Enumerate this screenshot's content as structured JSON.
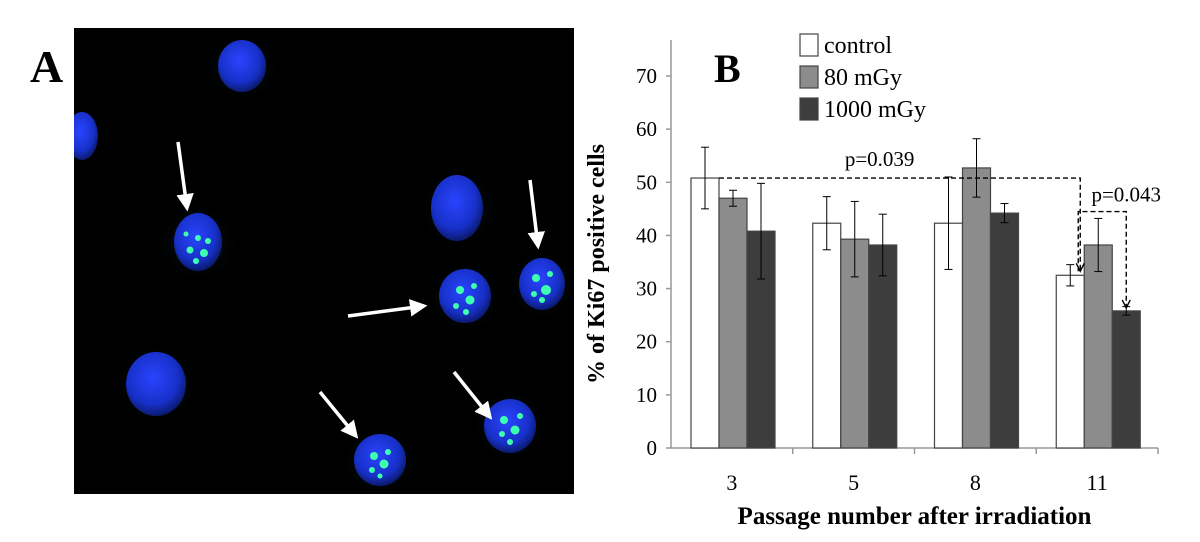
{
  "panel_a": {
    "label": "A"
  },
  "chart_data": {
    "type": "bar",
    "panel_label": "B",
    "xlabel": "Passage number after irradiation",
    "ylabel": "% of Ki67 positive cells",
    "categories": [
      "3",
      "5",
      "8",
      "11"
    ],
    "ylim": [
      0,
      70
    ],
    "yticks": [
      0,
      10,
      20,
      30,
      40,
      50,
      60,
      70
    ],
    "grid": false,
    "legend_position": "top",
    "series": [
      {
        "name": "control",
        "color": "#ffffff",
        "values": [
          50.8,
          42.3,
          42.3,
          32.5
        ],
        "errors": [
          5.8,
          5.0,
          8.7,
          2.0
        ]
      },
      {
        "name": "80 mGy",
        "color": "#8c8c8c",
        "values": [
          47.0,
          39.3,
          52.7,
          38.2
        ],
        "errors": [
          1.5,
          7.1,
          5.5,
          5.0
        ]
      },
      {
        "name": "1000 mGy",
        "color": "#3d3d3d",
        "values": [
          40.8,
          38.2,
          44.2,
          25.8
        ],
        "errors": [
          9.0,
          5.8,
          1.8,
          0.8
        ]
      }
    ],
    "annotations": [
      {
        "text": "p=0.039",
        "from": {
          "category": "3",
          "series": "control"
        },
        "to": {
          "category": "11",
          "series": "control"
        }
      },
      {
        "text": "p=0.043",
        "from": {
          "category": "11",
          "series": "control"
        },
        "to": {
          "category": "11",
          "series": "1000 mGy"
        }
      }
    ]
  }
}
